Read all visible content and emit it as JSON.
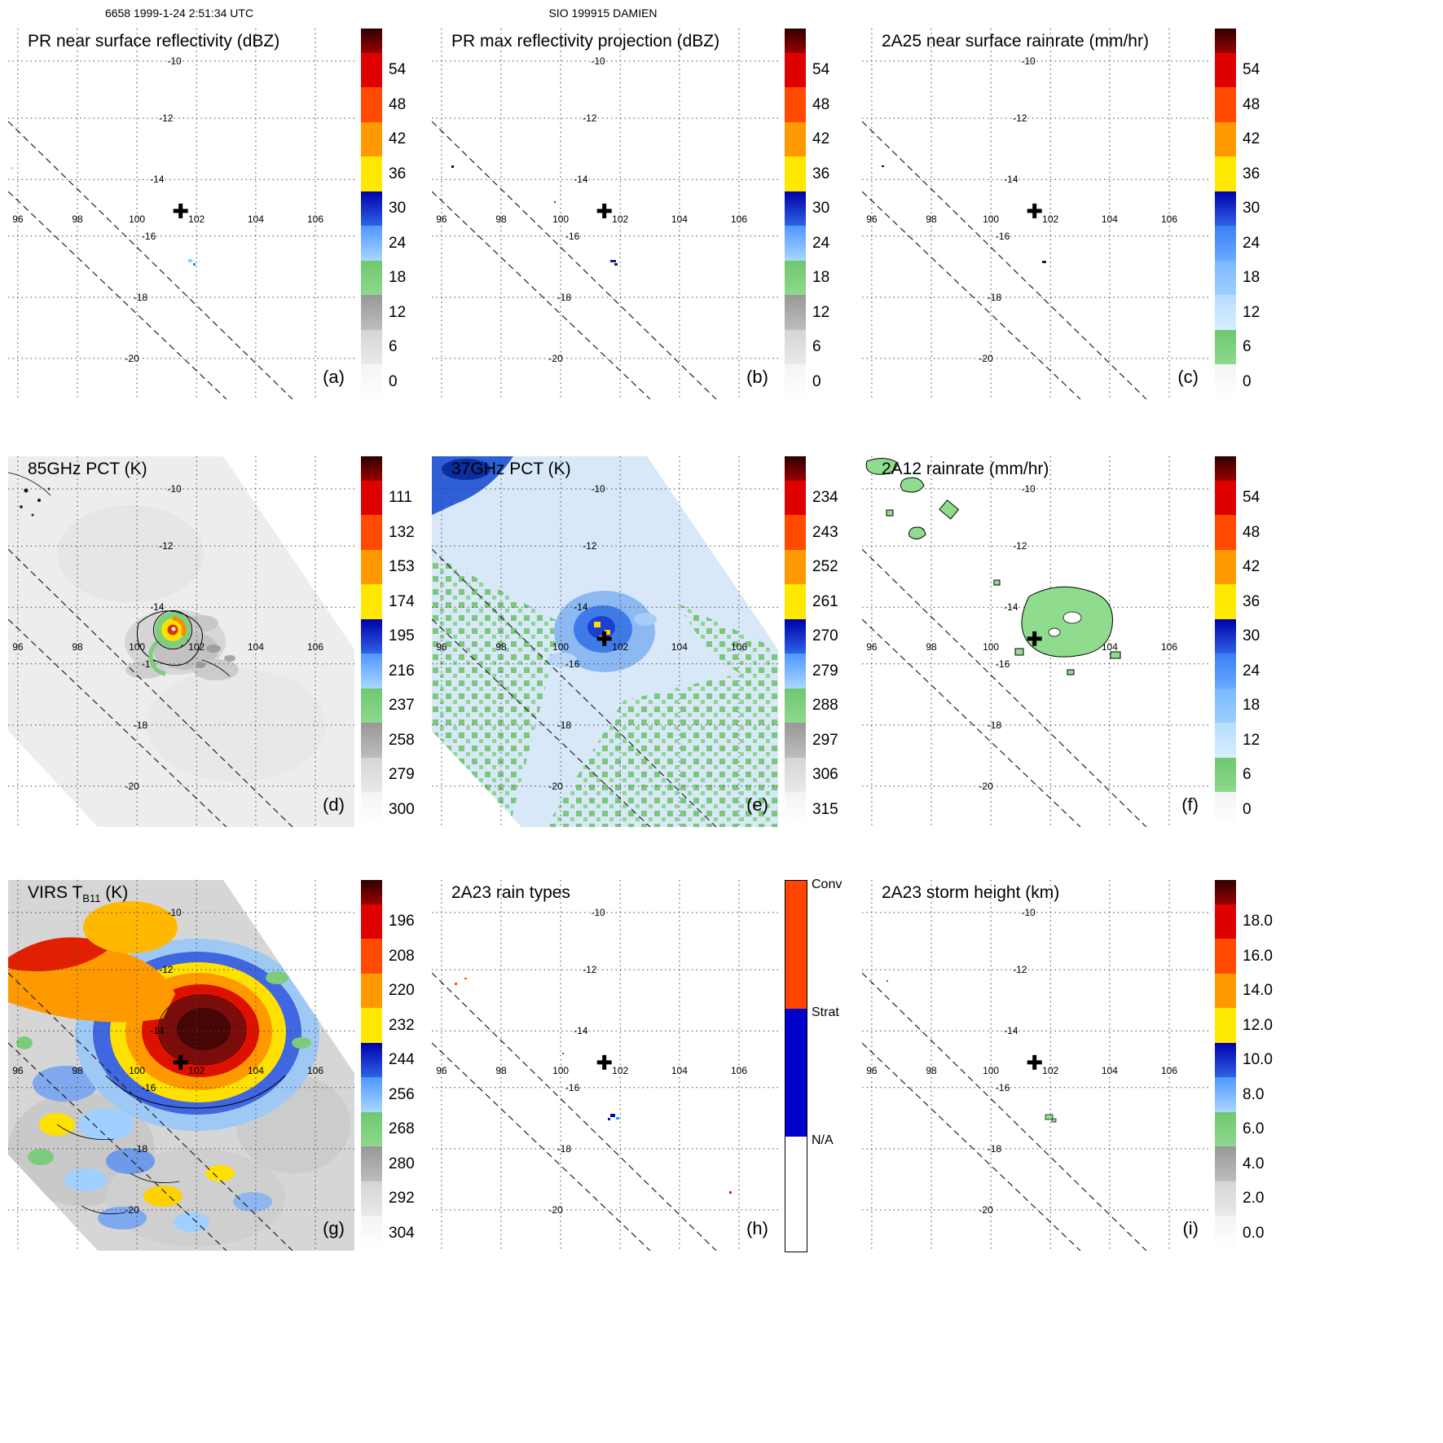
{
  "header": {
    "orbit_timestamp": "6658 1999-1-24 2:51:34 UTC",
    "storm_name": "SIO 199915 DAMIEN"
  },
  "axes": {
    "lon_ticks": [
      "96",
      "98",
      "100",
      "102",
      "104",
      "106"
    ],
    "lat_ticks": [
      "-10",
      "-12",
      "-14",
      "-16",
      "-18",
      "-20"
    ]
  },
  "colorbars": {
    "gray_scheme": [
      [
        "#2e0000",
        "#9a0000"
      ],
      [
        "#df0000"
      ],
      [
        "#ff4a00"
      ],
      [
        "#ff9900"
      ],
      [
        "#ffe800"
      ],
      [
        "#0000aa",
        "#2e62e6"
      ],
      [
        "#4f97ff",
        "#a9d6ff"
      ],
      [
        "#6ec86e",
        "#8ed88e"
      ],
      [
        "#989898",
        "#bdbdbd"
      ],
      [
        "#d5d5d5",
        "#e9e9e9"
      ],
      [
        "#f4f4f4",
        "#ffffff"
      ]
    ],
    "rain_scheme": [
      [
        "#2e0000",
        "#9a0000"
      ],
      [
        "#df0000"
      ],
      [
        "#ff4a00"
      ],
      [
        "#ff9900"
      ],
      [
        "#ffe800"
      ],
      [
        "#0000aa",
        "#2e62e6"
      ],
      [
        "#3a7ef5",
        "#6aaaff"
      ],
      [
        "#7ab8ff",
        "#9ccfff"
      ],
      [
        "#b7dcff",
        "#d6eeff"
      ],
      [
        "#6ec86e",
        "#8ed88e"
      ],
      [
        "#f4f4f4",
        "#ffffff"
      ]
    ],
    "raintype": {
      "labels": [
        "Conv",
        "Strat",
        "N/A"
      ],
      "colors": [
        "#ff4500",
        "#0000cc",
        "#ffffff"
      ],
      "bounds": [
        0,
        0.345,
        0.69,
        1
      ]
    }
  },
  "panels": {
    "a": {
      "title": "PR near surface reflectivity (dBZ)",
      "letter": "(a)",
      "colorbar_type": "gray",
      "ticks": [
        "54",
        "48",
        "42",
        "36",
        "30",
        "24",
        "18",
        "12",
        "6",
        "0"
      ]
    },
    "b": {
      "title": "PR max reflectivity projection (dBZ)",
      "letter": "(b)",
      "colorbar_type": "gray",
      "ticks": [
        "54",
        "48",
        "42",
        "36",
        "30",
        "24",
        "18",
        "12",
        "6",
        "0"
      ]
    },
    "c": {
      "title": "2A25 near surface rainrate (mm/hr)",
      "letter": "(c)",
      "colorbar_type": "rain",
      "ticks": [
        "54",
        "48",
        "42",
        "36",
        "30",
        "24",
        "18",
        "12",
        "6",
        "0"
      ]
    },
    "d": {
      "title": "85GHz PCT (K)",
      "letter": "(d)",
      "colorbar_type": "gray",
      "ticks": [
        "111",
        "132",
        "153",
        "174",
        "195",
        "216",
        "237",
        "258",
        "279",
        "300"
      ]
    },
    "e": {
      "title": "37GHz PCT (K)",
      "letter": "(e)",
      "colorbar_type": "gray",
      "ticks": [
        "234",
        "243",
        "252",
        "261",
        "270",
        "279",
        "288",
        "297",
        "306",
        "315"
      ]
    },
    "f": {
      "title": "2A12 rainrate (mm/hr)",
      "letter": "(f)",
      "colorbar_type": "rain",
      "ticks": [
        "54",
        "48",
        "42",
        "36",
        "30",
        "24",
        "18",
        "12",
        "6",
        "0"
      ]
    },
    "g": {
      "title_prefix": "VIRS T",
      "title_sub": "B11",
      "title_suffix": " (K)",
      "letter": "(g)",
      "colorbar_type": "gray",
      "ticks": [
        "196",
        "208",
        "220",
        "232",
        "244",
        "256",
        "268",
        "280",
        "292",
        "304"
      ]
    },
    "h": {
      "title": "2A23 rain types",
      "letter": "(h)",
      "colorbar_type": "raintype",
      "ticks": []
    },
    "i": {
      "title": "2A23 storm height (km)",
      "letter": "(i)",
      "colorbar_type": "gray",
      "ticks": [
        "18.0",
        "16.0",
        "14.0",
        "12.0",
        "10.0",
        "8.0",
        "6.0",
        "4.0",
        "2.0",
        "0.0"
      ]
    }
  },
  "chart_data": [
    {
      "panel": "a",
      "type": "heatmap",
      "title": "PR near surface reflectivity (dBZ)",
      "units": "dBZ",
      "lon_ticks": [
        96,
        98,
        100,
        102,
        104,
        106
      ],
      "lat_ticks": [
        -10,
        -12,
        -14,
        -16,
        -18,
        -20
      ],
      "colorbar_ticks": [
        54,
        48,
        42,
        36,
        30,
        24,
        18,
        12,
        6,
        0
      ],
      "storm_center_lonlat": [
        101.8,
        -15.4
      ],
      "features": "PR swath nearly echo-free; small 18-30 dBZ echo cluster near 102.1E 16.6S; faint speck at far west edge near 95.8E 14.2S"
    },
    {
      "panel": "b",
      "type": "heatmap",
      "title": "PR max reflectivity projection (dBZ)",
      "units": "dBZ",
      "colorbar_ticks": [
        54,
        48,
        42,
        36,
        30,
        24,
        18,
        12,
        6,
        0
      ],
      "storm_center_lonlat": [
        101.8,
        -15.4
      ],
      "features": "isolated 25-40 dBZ max-reflectivity pixels near 102.1E 16.6S; tiny specks near 96.2E 14.1S and 100.5E 15.3S"
    },
    {
      "panel": "c",
      "type": "heatmap",
      "title": "2A25 near surface rainrate (mm/hr)",
      "units": "mm/hr",
      "colorbar_ticks": [
        54,
        48,
        42,
        36,
        30,
        24,
        18,
        12,
        6,
        0
      ],
      "storm_center_lonlat": [
        101.8,
        -15.4
      ],
      "features": "isolated light rain pixels (<6 mm/hr) near 102.1E 16.6S and at far west swath edge"
    },
    {
      "panel": "d",
      "type": "heatmap",
      "title": "85GHz PCT (K)",
      "units": "K",
      "colorbar_ticks": [
        111,
        132,
        153,
        174,
        195,
        216,
        237,
        258,
        279,
        300
      ],
      "storm_center_lonlat": [
        101.8,
        -15.4
      ],
      "features": "wide TMI swath of ~280-300 K background; compact cyclone core near 101.5E 15.4S with ring of depressed PCT (~130-230 K shown green/yellow/red/blue); scattered dark speckle to the northwest"
    },
    {
      "panel": "e",
      "type": "heatmap",
      "title": "37GHz PCT (K)",
      "units": "K",
      "colorbar_ticks": [
        234,
        243,
        252,
        261,
        270,
        279,
        288,
        297,
        306,
        315
      ],
      "storm_center_lonlat": [
        101.8,
        -15.4
      ],
      "features": "swath mostly 270-288 K (pale blue) with green ~288-306 K speckle toward edges; depressed 240-270 K blob at storm center with small ~250 K minima; cold blob at far NW corner"
    },
    {
      "panel": "f",
      "type": "heatmap",
      "title": "2A12 rainrate (mm/hr)",
      "units": "mm/hr",
      "colorbar_ticks": [
        54,
        48,
        42,
        36,
        30,
        24,
        18,
        12,
        6,
        0
      ],
      "storm_center_lonlat": [
        101.8,
        -15.4
      ],
      "features": "light rain (~1-6 mm/hr, green) in an irregular shield around 101.5-104E 14.8-16.2S with embedded rain-free holes; scattered patches near the NW corner"
    },
    {
      "panel": "g",
      "type": "heatmap",
      "title": "VIRS TB11 (K)",
      "units": "K",
      "colorbar_ticks": [
        196,
        208,
        220,
        232,
        244,
        256,
        268,
        280,
        292,
        304
      ],
      "storm_center_lonlat": [
        101.8,
        -15.4
      ],
      "features": "large cold cloud shield centered ~102E 15S: core colder than 196 K (dark red) ringed by 208-244 K (red/orange/yellow/blue); fragmented cold cloud bands to the SW over a warmer 260-304 K background"
    },
    {
      "panel": "h",
      "type": "heatmap",
      "title": "2A23 rain types",
      "categories": [
        "Conv",
        "Strat",
        "N/A"
      ],
      "storm_center_lonlat": [
        101.8,
        -15.4
      ],
      "features": "few stratiform (blue) pixels near 102.1E 16.6S; isolated convective (red) specks near 96.5E 13.6S and 104.8E 18.9S"
    },
    {
      "panel": "i",
      "type": "heatmap",
      "title": "2A23 storm height (km)",
      "units": "km",
      "colorbar_ticks": [
        18,
        16,
        14,
        12,
        10,
        8,
        6,
        4,
        2,
        0
      ],
      "storm_center_lonlat": [
        101.8,
        -15.4
      ],
      "features": "isolated storm-height pixels ~4-6 km near 102.2E 16.6S"
    }
  ]
}
